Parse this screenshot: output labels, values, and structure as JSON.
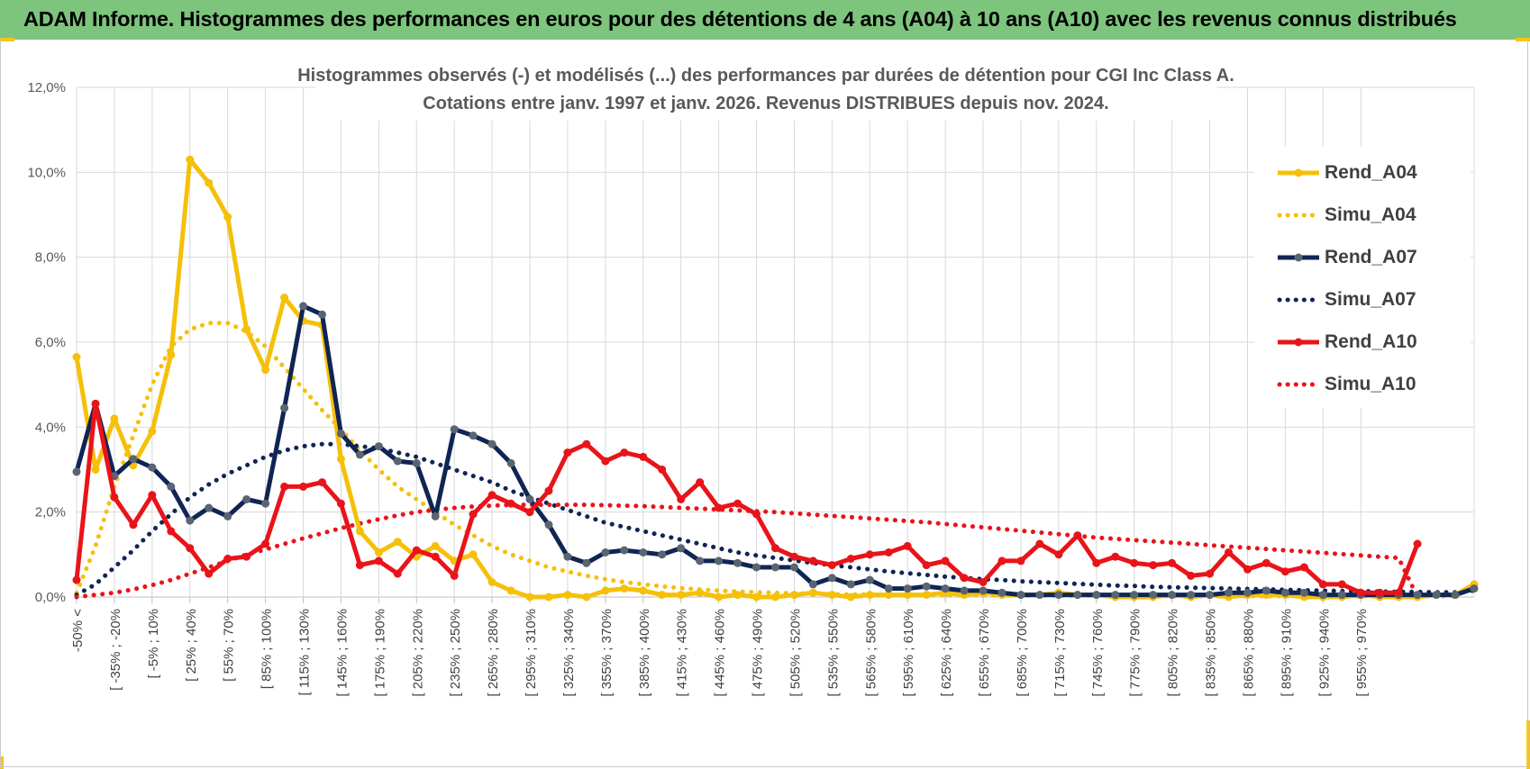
{
  "header": {
    "title": "ADAM Informe. Histogrammes des performances en euros pour des détentions de 4 ans (A04) à 10 ans (A10) avec les revenus connus distribués"
  },
  "chart_data": {
    "type": "line",
    "title": "Histogrammes observés (-) et modélisés (...) des performances par durées de détention pour CGI Inc Class A.",
    "subtitle": "Cotations entre janv. 1997 et janv. 2026. Revenus DISTRIBUES depuis nov. 2024.",
    "xlabel": "",
    "ylabel": "",
    "ylim": [
      0,
      12
    ],
    "yticks": [
      "0,0%",
      "2,0%",
      "4,0%",
      "6,0%",
      "8,0%",
      "10,0%",
      "12,0%"
    ],
    "x_tick_labels": [
      "-50% <",
      "[ -35% ; -20%",
      "[ -5% ; 10%",
      "[ 25% ; 40%",
      "[ 55% ; 70%",
      "[ 85% ; 100%",
      "[ 115% ; 130%",
      "[ 145% ; 160%",
      "[ 175% ; 190%",
      "[ 205% ; 220%",
      "[ 235% ; 250%",
      "[ 265% ; 280%",
      "[ 295% ; 310%",
      "[ 325% ; 340%",
      "[ 355% ; 370%",
      "[ 385% ; 400%",
      "[ 415% ; 430%",
      "[ 445% ; 460%",
      "[ 475% ; 490%",
      "[ 505% ; 520%",
      "[ 535% ; 550%",
      "[ 565% ; 580%",
      "[ 595% ; 610%",
      "[ 625% ; 640%",
      "[ 655% ; 670%",
      "[ 685% ; 700%",
      "[ 715% ; 730%",
      "[ 745% ; 760%",
      "[ 775% ; 790%",
      "[ 805% ; 820%",
      "[ 835% ; 850%",
      "[ 865% ; 880%",
      "[ 895% ; 910%",
      "[ 925% ; 940%",
      "[ 955% ; 970%"
    ],
    "grid": true,
    "legend_position": "right",
    "series": [
      {
        "name": "Rend_A04",
        "style": "solid",
        "marker": true,
        "color": "#f5c00a",
        "values": [
          5.65,
          3.0,
          4.2,
          3.1,
          3.9,
          5.7,
          10.3,
          9.75,
          8.95,
          6.3,
          5.35,
          7.05,
          6.5,
          6.4,
          3.25,
          1.55,
          1.05,
          1.3,
          0.95,
          1.2,
          0.85,
          1.0,
          0.35,
          0.15,
          0.0,
          0.0,
          0.05,
          0.0,
          0.15,
          0.2,
          0.15,
          0.05,
          0.05,
          0.1,
          0.0,
          0.05,
          0.0,
          0.0,
          0.05,
          0.1,
          0.05,
          0.0,
          0.05,
          0.05,
          0.05,
          0.05,
          0.1,
          0.05,
          0.1,
          0.05,
          0.05,
          0.05,
          0.1,
          0.05,
          0.05,
          0.0,
          0.0,
          0.0,
          0.05,
          0.0,
          0.05,
          0.0,
          0.05,
          0.05,
          0.05,
          0.0,
          0.0,
          0.0,
          0.05,
          0.0,
          0.0,
          0.0,
          0.05,
          0.05,
          0.3
        ]
      },
      {
        "name": "Simu_A04",
        "style": "dotted",
        "marker": false,
        "color": "#f5c00a",
        "values": [
          0.1,
          1.2,
          2.6,
          3.8,
          5.0,
          5.9,
          6.3,
          6.45,
          6.45,
          6.25,
          5.9,
          5.4,
          4.9,
          4.4,
          3.95,
          3.45,
          3.0,
          2.6,
          2.3,
          2.0,
          1.7,
          1.45,
          1.2,
          1.0,
          0.85,
          0.7,
          0.6,
          0.5,
          0.42,
          0.35,
          0.3,
          0.25,
          0.21,
          0.18,
          0.15,
          0.13,
          0.11,
          0.1,
          0.09,
          0.08,
          0.07,
          0.06,
          0.06,
          0.05,
          0.05,
          0.05,
          0.04,
          0.04,
          0.04,
          0.04,
          0.03,
          0.03,
          0.03,
          0.03,
          0.03,
          0.03,
          0.02,
          0.02,
          0.02,
          0.02,
          0.02,
          0.02,
          0.02,
          0.02,
          0.02,
          0.02,
          0.02,
          0.02,
          0.02,
          0.02,
          0.02,
          0.02,
          0.02,
          0.02,
          0.3
        ]
      },
      {
        "name": "Rend_A07",
        "style": "solid",
        "marker": true,
        "color": "#0f2554",
        "values": [
          2.95,
          4.55,
          2.85,
          3.25,
          3.05,
          2.6,
          1.8,
          2.1,
          1.9,
          2.3,
          2.2,
          4.45,
          6.85,
          6.65,
          3.85,
          3.35,
          3.55,
          3.2,
          3.15,
          1.9,
          3.95,
          3.8,
          3.6,
          3.15,
          2.3,
          1.7,
          0.95,
          0.8,
          1.05,
          1.1,
          1.05,
          1.0,
          1.15,
          0.85,
          0.85,
          0.8,
          0.7,
          0.7,
          0.7,
          0.3,
          0.45,
          0.3,
          0.4,
          0.2,
          0.2,
          0.25,
          0.2,
          0.15,
          0.15,
          0.1,
          0.05,
          0.05,
          0.05,
          0.05,
          0.05,
          0.05,
          0.05,
          0.05,
          0.05,
          0.05,
          0.05,
          0.1,
          0.1,
          0.15,
          0.1,
          0.1,
          0.05,
          0.05,
          0.05,
          0.05,
          0.05,
          0.05,
          0.05,
          0.05,
          0.2
        ]
      },
      {
        "name": "Simu_A07",
        "style": "dotted",
        "marker": false,
        "color": "#0f2554",
        "values": [
          0.05,
          0.3,
          0.7,
          1.1,
          1.55,
          1.95,
          2.35,
          2.65,
          2.9,
          3.1,
          3.3,
          3.45,
          3.55,
          3.6,
          3.6,
          3.55,
          3.5,
          3.4,
          3.3,
          3.15,
          3.0,
          2.85,
          2.7,
          2.5,
          2.35,
          2.2,
          2.05,
          1.9,
          1.75,
          1.65,
          1.55,
          1.45,
          1.35,
          1.25,
          1.15,
          1.05,
          0.98,
          0.92,
          0.86,
          0.8,
          0.75,
          0.7,
          0.65,
          0.6,
          0.56,
          0.52,
          0.48,
          0.45,
          0.42,
          0.4,
          0.37,
          0.35,
          0.33,
          0.31,
          0.29,
          0.27,
          0.26,
          0.24,
          0.23,
          0.22,
          0.21,
          0.2,
          0.19,
          0.18,
          0.17,
          0.16,
          0.15,
          0.14,
          0.14,
          0.13,
          0.12,
          0.12,
          0.11,
          0.11,
          0.15
        ]
      },
      {
        "name": "Rend_A10",
        "style": "solid",
        "marker": true,
        "color": "#e8141a",
        "values": [
          0.4,
          4.55,
          2.35,
          1.7,
          2.4,
          1.55,
          1.15,
          0.55,
          0.9,
          0.95,
          1.25,
          2.6,
          2.6,
          2.7,
          2.2,
          0.75,
          0.85,
          0.55,
          1.1,
          0.95,
          0.5,
          1.95,
          2.4,
          2.2,
          2.0,
          2.5,
          3.4,
          3.6,
          3.2,
          3.4,
          3.3,
          3.0,
          2.3,
          2.7,
          2.1,
          2.2,
          1.95,
          1.15,
          0.95,
          0.85,
          0.75,
          0.9,
          1.0,
          1.05,
          1.2,
          0.75,
          0.85,
          0.45,
          0.35,
          0.85,
          0.85,
          1.25,
          1.0,
          1.45,
          0.8,
          0.95,
          0.8,
          0.75,
          0.8,
          0.5,
          0.55,
          1.05,
          0.65,
          0.8,
          0.6,
          0.7,
          0.3,
          0.3,
          0.1,
          0.1,
          0.1,
          1.25
        ]
      },
      {
        "name": "Simu_A10",
        "style": "dotted",
        "marker": false,
        "color": "#e8141a",
        "values": [
          0.0,
          0.05,
          0.1,
          0.18,
          0.28,
          0.4,
          0.55,
          0.7,
          0.85,
          1.0,
          1.12,
          1.25,
          1.38,
          1.5,
          1.62,
          1.73,
          1.83,
          1.92,
          2.0,
          2.05,
          2.1,
          2.13,
          2.15,
          2.17,
          2.17,
          2.17,
          2.17,
          2.17,
          2.16,
          2.15,
          2.14,
          2.12,
          2.1,
          2.08,
          2.06,
          2.04,
          2.02,
          2.0,
          1.97,
          1.94,
          1.91,
          1.88,
          1.85,
          1.82,
          1.79,
          1.76,
          1.72,
          1.68,
          1.64,
          1.6,
          1.56,
          1.52,
          1.48,
          1.44,
          1.4,
          1.37,
          1.34,
          1.31,
          1.28,
          1.25,
          1.22,
          1.19,
          1.16,
          1.13,
          1.1,
          1.07,
          1.04,
          1.01,
          0.98,
          0.95,
          0.92,
          0.0
        ]
      }
    ]
  }
}
